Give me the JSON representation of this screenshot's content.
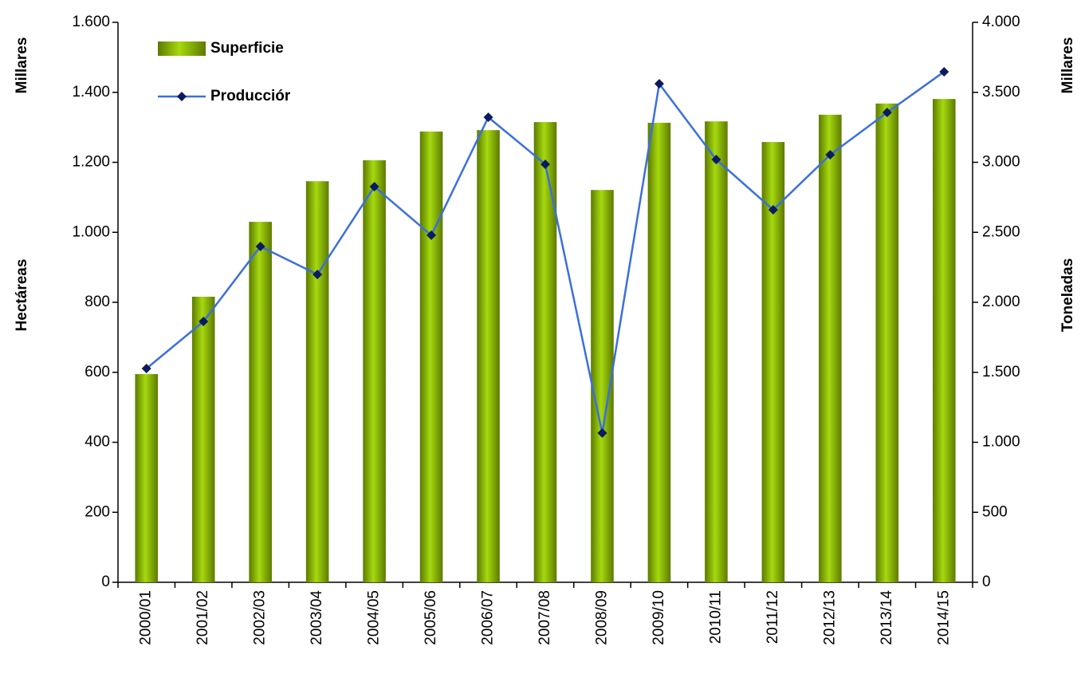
{
  "chart_data": {
    "type": "bar",
    "y_unit": "Millares",
    "y_label": "Hectáreas",
    "y2_unit": "Millares",
    "y2_label": "Toneladas",
    "categories": [
      "2000/01",
      "2001/02",
      "2002/03",
      "2003/04",
      "2004/05",
      "2005/06",
      "2006/07",
      "2007/08",
      "2008/09",
      "2009/10",
      "2010/11",
      "2011/12",
      "2012/13",
      "2013/14",
      "2014/15"
    ],
    "series": [
      {
        "name": "Superficie",
        "type": "bar",
        "color": "#8cb800",
        "values": [
          595,
          816,
          1030,
          1146,
          1206,
          1288,
          1292,
          1315,
          1121,
          1313,
          1317,
          1258,
          1336,
          1368,
          1381
        ]
      },
      {
        "name": "Producciór",
        "type": "line",
        "axis": "y2",
        "color": "#3b6fdc",
        "marker_color": "#0b1b5e",
        "values": [
          1527,
          1863,
          2399,
          2199,
          2826,
          2479,
          3322,
          2986,
          1066,
          3561,
          3020,
          2661,
          3054,
          3356,
          3647
        ]
      }
    ],
    "ylim": [
      0,
      1600
    ],
    "yticks": [
      0,
      200,
      400,
      600,
      800,
      {
        "value": 1000,
        "label": "1.000"
      },
      {
        "value": 1200,
        "label": "1.200"
      },
      {
        "value": 1400,
        "label": "1.400"
      },
      {
        "value": 1600,
        "label": "1.600"
      }
    ],
    "y2lim": [
      0,
      4000
    ],
    "y2ticks": [
      0,
      500,
      {
        "value": 1000,
        "label": "1.000"
      },
      {
        "value": 1500,
        "label": "1.500"
      },
      {
        "value": 2000,
        "label": "2.000"
      },
      {
        "value": 2500,
        "label": "2.500"
      },
      {
        "value": 3000,
        "label": "3.000"
      },
      {
        "value": 3500,
        "label": "3.500"
      },
      {
        "value": 4000,
        "label": "4.000"
      }
    ],
    "legend": "top-left"
  }
}
